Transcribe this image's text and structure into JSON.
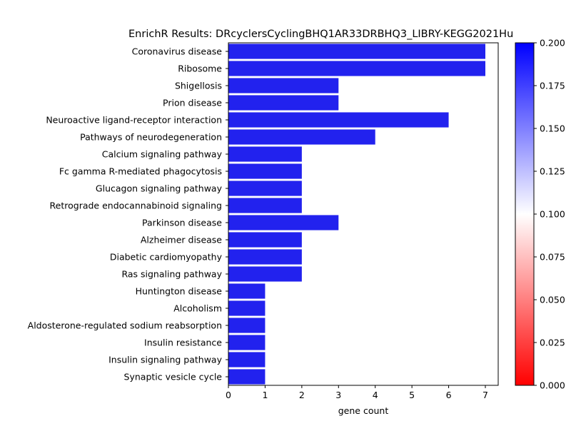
{
  "chart_data": {
    "type": "bar",
    "orientation": "horizontal",
    "title": "EnrichR Results: DRcyclersCyclingBHQ1AR33DRBHQ3_LIBRY-KEGG2021Hu",
    "xlabel": "gene count",
    "ylabel": "",
    "xlim": [
      0,
      7.35
    ],
    "xticks": [
      0,
      1,
      2,
      3,
      4,
      5,
      6,
      7
    ],
    "categories": [
      "Coronavirus disease",
      "Ribosome",
      "Shigellosis",
      "Prion disease",
      "Neuroactive ligand-receptor interaction",
      "Pathways of neurodegeneration",
      "Calcium signaling pathway",
      "Fc gamma R-mediated phagocytosis",
      "Glucagon signaling pathway",
      "Retrograde endocannabinoid signaling",
      "Parkinson disease",
      "Alzheimer disease",
      "Diabetic cardiomyopathy",
      "Ras signaling pathway",
      "Huntington disease",
      "Alcoholism",
      "Aldosterone-regulated sodium reabsorption",
      "Insulin resistance",
      "Insulin signaling pathway",
      "Synaptic vesicle cycle"
    ],
    "values": [
      7,
      7,
      3,
      3,
      6,
      4,
      2,
      2,
      2,
      2,
      3,
      2,
      2,
      2,
      1,
      1,
      1,
      1,
      1,
      1
    ],
    "bar_color": "#2222ee",
    "grid": false,
    "colorbar": {
      "range": [
        0,
        0.2
      ],
      "ticks": [
        "0.000",
        "0.025",
        "0.050",
        "0.075",
        "0.100",
        "0.125",
        "0.150",
        "0.175",
        "0.200"
      ],
      "colors": [
        "#ff0000",
        "#ffffff",
        "#0000ff"
      ]
    }
  }
}
